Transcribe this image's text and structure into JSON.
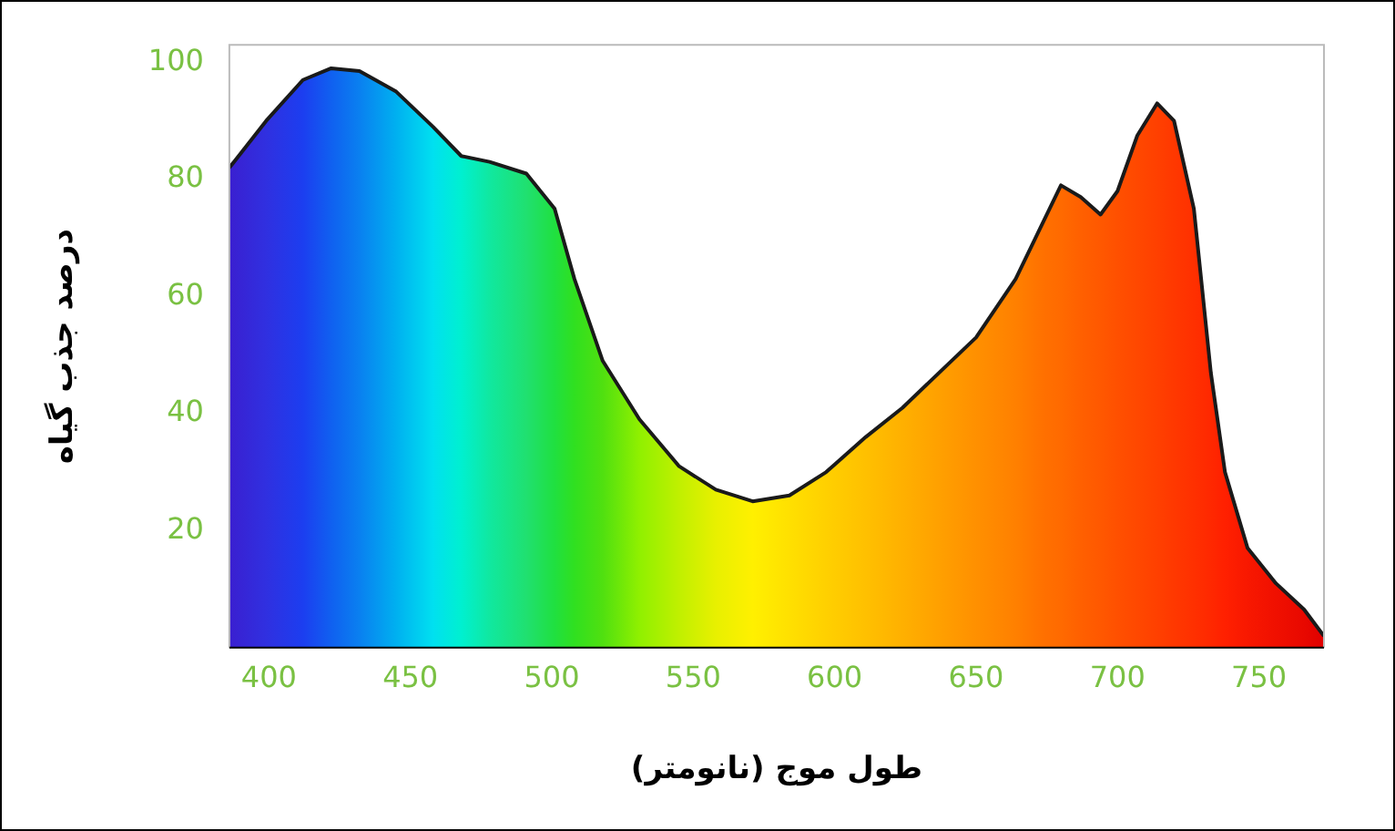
{
  "chart_data": {
    "type": "area",
    "xlabel": "طول موج (نانومتر)",
    "ylabel": "درصد جذب گیاه",
    "xlim": [
      386,
      773
    ],
    "ylim": [
      0,
      103
    ],
    "xticks": [
      400,
      450,
      500,
      550,
      600,
      650,
      700,
      750
    ],
    "yticks": [
      20,
      40,
      60,
      80,
      100
    ],
    "grid": false,
    "x": [
      386,
      399,
      412,
      422,
      432,
      445,
      458,
      468,
      478,
      491,
      501,
      508,
      518,
      531,
      545,
      558,
      571,
      584,
      597,
      611,
      624,
      637,
      650,
      664,
      674,
      680,
      687,
      694,
      700,
      707,
      714,
      720,
      727,
      733,
      738,
      746,
      756,
      766,
      773
    ],
    "series": [
      {
        "color": "#1a1a1a",
        "values": [
          82,
          90,
          97,
          99,
          98.5,
          95,
          89,
          84,
          83,
          81,
          75,
          63,
          49,
          39,
          31,
          27,
          25,
          26,
          30,
          36,
          41,
          47,
          53,
          63,
          73,
          79,
          77,
          74,
          78,
          87.5,
          93,
          90,
          75,
          47,
          30,
          17,
          11,
          6.5,
          2
        ],
        "colors": [
          "#3a1fd0",
          "#3030e0",
          "#1c3ef0",
          "#1060f0",
          "#0a80f0",
          "#00b0f0",
          "#00e0f0",
          "#00f0d0",
          "#10e8a0",
          "#20e070",
          "#20e040",
          "#30e020",
          "#50e010",
          "#90f000",
          "#c0f000",
          "#e8f000",
          "#fff000",
          "#ffe000",
          "#ffd000",
          "#ffc000",
          "#ffb000",
          "#ffa000",
          "#ff9000",
          "#ff8000",
          "#ff7000",
          "#ff6a00",
          "#ff6000",
          "#ff5800",
          "#ff5000",
          "#ff4800",
          "#ff4000",
          "#ff3800",
          "#ff3000",
          "#ff2800",
          "#ff2000",
          "#f81800",
          "#f01000",
          "#e80800",
          "#e00000"
        ]
      }
    ]
  }
}
